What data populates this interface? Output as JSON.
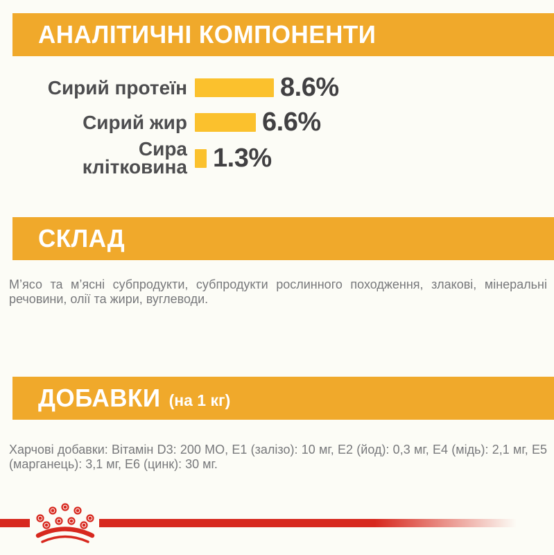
{
  "colors": {
    "banner": "#f0a92b",
    "bar": "#fbc12d",
    "banner_text": "#ffffff",
    "chart_label": "#4d4d4f",
    "chart_value": "#414042",
    "body_text": "#77787b",
    "logo_red": "#d7281e",
    "background": "#fcfcf6"
  },
  "sections": {
    "analytical": {
      "title": "АНАЛІТИЧНІ КОМПОНЕНТИ"
    },
    "composition": {
      "title": "СКЛАД",
      "body": "М’ясо та м’ясні субпродукти, субпродукти рослинного походження, злакові, мінеральні речовини, олії та жири, вуглеводи."
    },
    "additives": {
      "title": "ДОБАВКИ",
      "title_suffix": "(на 1 кг)",
      "body": "Харчові добавки: Вітамін D3: 200 МО, Е1 (залізо): 10 мг, Е2 (йод): 0,3 мг, Е4 (мідь): 2,1 мг, Е5 (марганець): 3,1 мг, Е6 (цинк): 30 мг."
    }
  },
  "chart_data": {
    "type": "bar",
    "orientation": "horizontal",
    "title": "АНАЛІТИЧНІ КОМПОНЕНТИ",
    "categories": [
      "Сирий протеїн",
      "Сирий жир",
      "Сира клітковина"
    ],
    "category_lines": [
      [
        "Сирий протеїн"
      ],
      [
        "Сирий жир"
      ],
      [
        "Сира",
        "клітковина"
      ]
    ],
    "values": [
      8.6,
      6.6,
      1.3
    ],
    "labels": [
      "8.6%",
      "6.6%",
      "1.3%"
    ],
    "unit": "%",
    "bar_color": "#fbc12d",
    "xlim": [
      0,
      10
    ],
    "grid": false,
    "legend": false
  },
  "footer": {
    "logo": "royal-canin-crown"
  }
}
